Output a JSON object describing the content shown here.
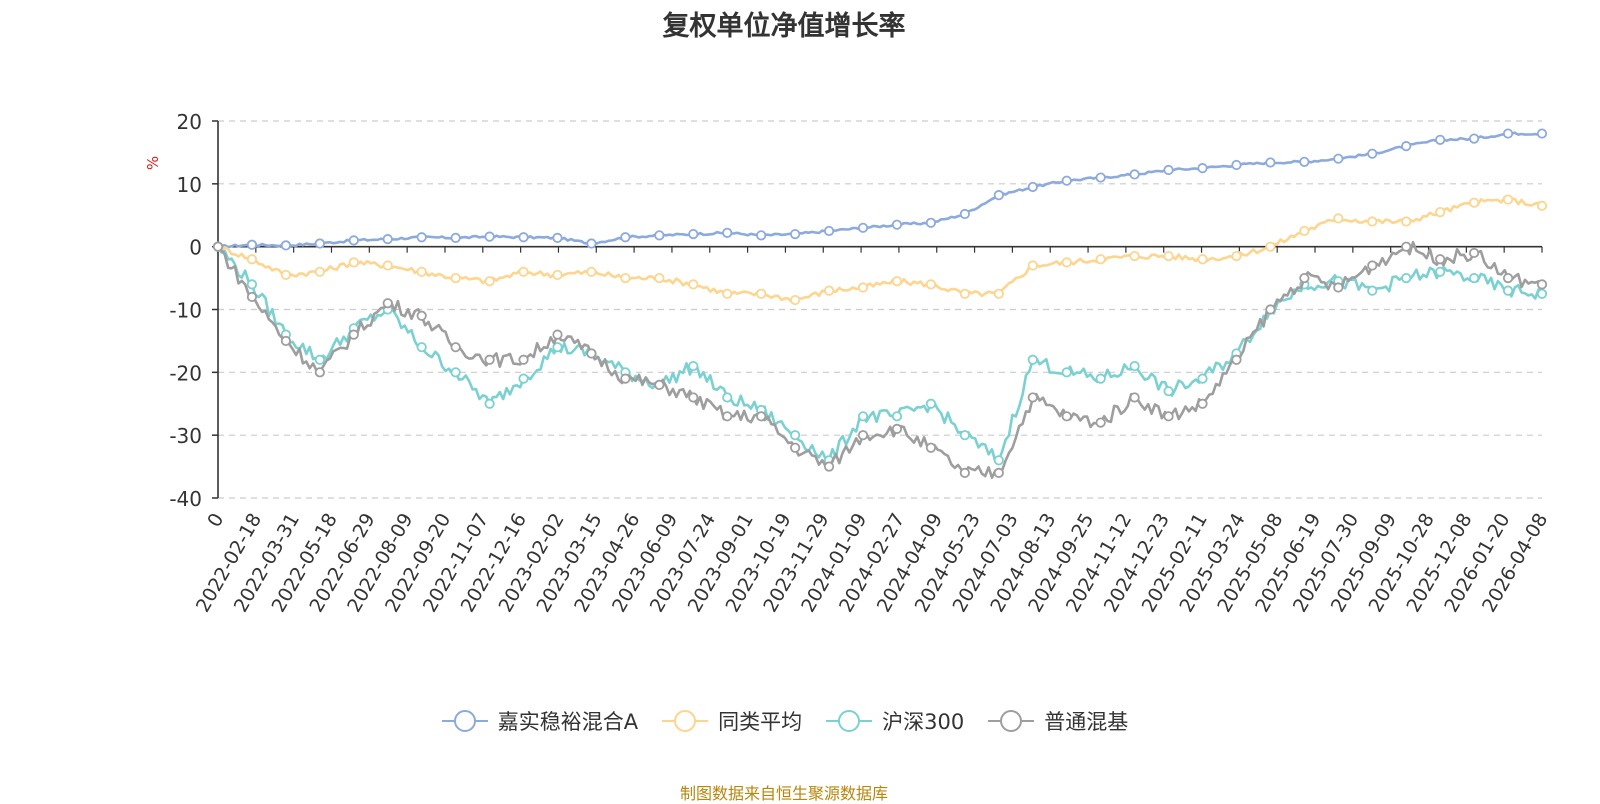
{
  "chart_data": {
    "type": "line",
    "title": "复权单位净值增长率",
    "ylabel": "%",
    "ylim": [
      -40,
      20
    ],
    "yticks": [
      -40,
      -30,
      -20,
      -10,
      0,
      10,
      20
    ],
    "grid": true,
    "legend_position": "bottom",
    "source_text": "制图数据来自恒生聚源数据库",
    "xstart_label": "0",
    "x_labels": [
      "2022-02-18",
      "2022-03-31",
      "2022-05-18",
      "2022-06-29",
      "2022-08-09",
      "2022-09-20",
      "2022-11-07",
      "2022-12-16",
      "2023-02-02",
      "2023-03-15",
      "2023-04-26",
      "2023-06-09",
      "2023-07-24",
      "2023-09-01",
      "2023-10-19",
      "2023-11-29",
      "2024-01-09",
      "2024-02-27",
      "2024-04-09",
      "2024-05-23",
      "2024-07-03",
      "2024-08-13",
      "2024-09-25",
      "2024-11-12",
      "2024-12-23",
      "2025-02-11",
      "2025-03-24",
      "2025-05-08",
      "2025-06-19",
      "2025-07-30",
      "2025-09-09",
      "2025-10-28",
      "2025-12-08",
      "2026-01-20",
      "2026-04-08"
    ],
    "series": [
      {
        "name": "嘉实稳裕混合A",
        "color": "#8caadc",
        "values": [
          0,
          0.3,
          0.2,
          0.5,
          1.0,
          1.2,
          1.5,
          1.4,
          1.6,
          1.5,
          1.4,
          0.5,
          1.5,
          1.8,
          2.0,
          2.2,
          1.8,
          2.0,
          2.5,
          3.0,
          3.5,
          3.8,
          5.2,
          8.2,
          9.5,
          10.5,
          11.0,
          11.5,
          12.2,
          12.5,
          13.0,
          13.4,
          13.5,
          14.0,
          14.8,
          16.0,
          17.0,
          17.2,
          18.0,
          18.0
        ]
      },
      {
        "name": "同类平均",
        "color": "#fdd58e",
        "values": [
          0,
          -2.0,
          -4.5,
          -4.0,
          -2.5,
          -3.0,
          -4.0,
          -5.0,
          -5.5,
          -4.0,
          -4.5,
          -4.0,
          -5.0,
          -5.0,
          -6.0,
          -7.5,
          -7.5,
          -8.5,
          -7.0,
          -6.5,
          -5.5,
          -6.0,
          -7.5,
          -7.5,
          -3.0,
          -2.5,
          -2.0,
          -1.5,
          -1.5,
          -2.0,
          -1.5,
          0,
          2.5,
          4.5,
          4.0,
          4.0,
          5.5,
          7.0,
          7.5,
          6.5
        ]
      },
      {
        "name": "沪深300",
        "color": "#7bd1d1",
        "values": [
          0,
          -6.0,
          -14.0,
          -18.0,
          -13.0,
          -10.0,
          -16.0,
          -20.0,
          -25.0,
          -21.0,
          -16.0,
          -17.0,
          -20.0,
          -22.0,
          -19.0,
          -24.0,
          -26.0,
          -30.0,
          -34.0,
          -27.0,
          -27.0,
          -25.0,
          -30.0,
          -34.0,
          -18.0,
          -20.0,
          -21.0,
          -19.0,
          -23.0,
          -21.0,
          -17.0,
          -10.0,
          -6.0,
          -5.5,
          -7.0,
          -5.0,
          -4.0,
          -5.0,
          -7.0,
          -7.5
        ]
      },
      {
        "name": "普通混基",
        "color": "#9e9e9e",
        "values": [
          0,
          -8.0,
          -15.0,
          -20.0,
          -14.0,
          -9.0,
          -11.0,
          -16.0,
          -18.0,
          -18.0,
          -14.0,
          -17.0,
          -21.0,
          -22.0,
          -24.0,
          -27.0,
          -27.0,
          -32.0,
          -35.0,
          -30.0,
          -29.0,
          -32.0,
          -36.0,
          -36.0,
          -24.0,
          -27.0,
          -28.0,
          -24.0,
          -27.0,
          -25.0,
          -18.0,
          -10.0,
          -5.0,
          -6.5,
          -3.0,
          0,
          -2.0,
          -1.0,
          -5.0,
          -6.0
        ]
      }
    ]
  }
}
